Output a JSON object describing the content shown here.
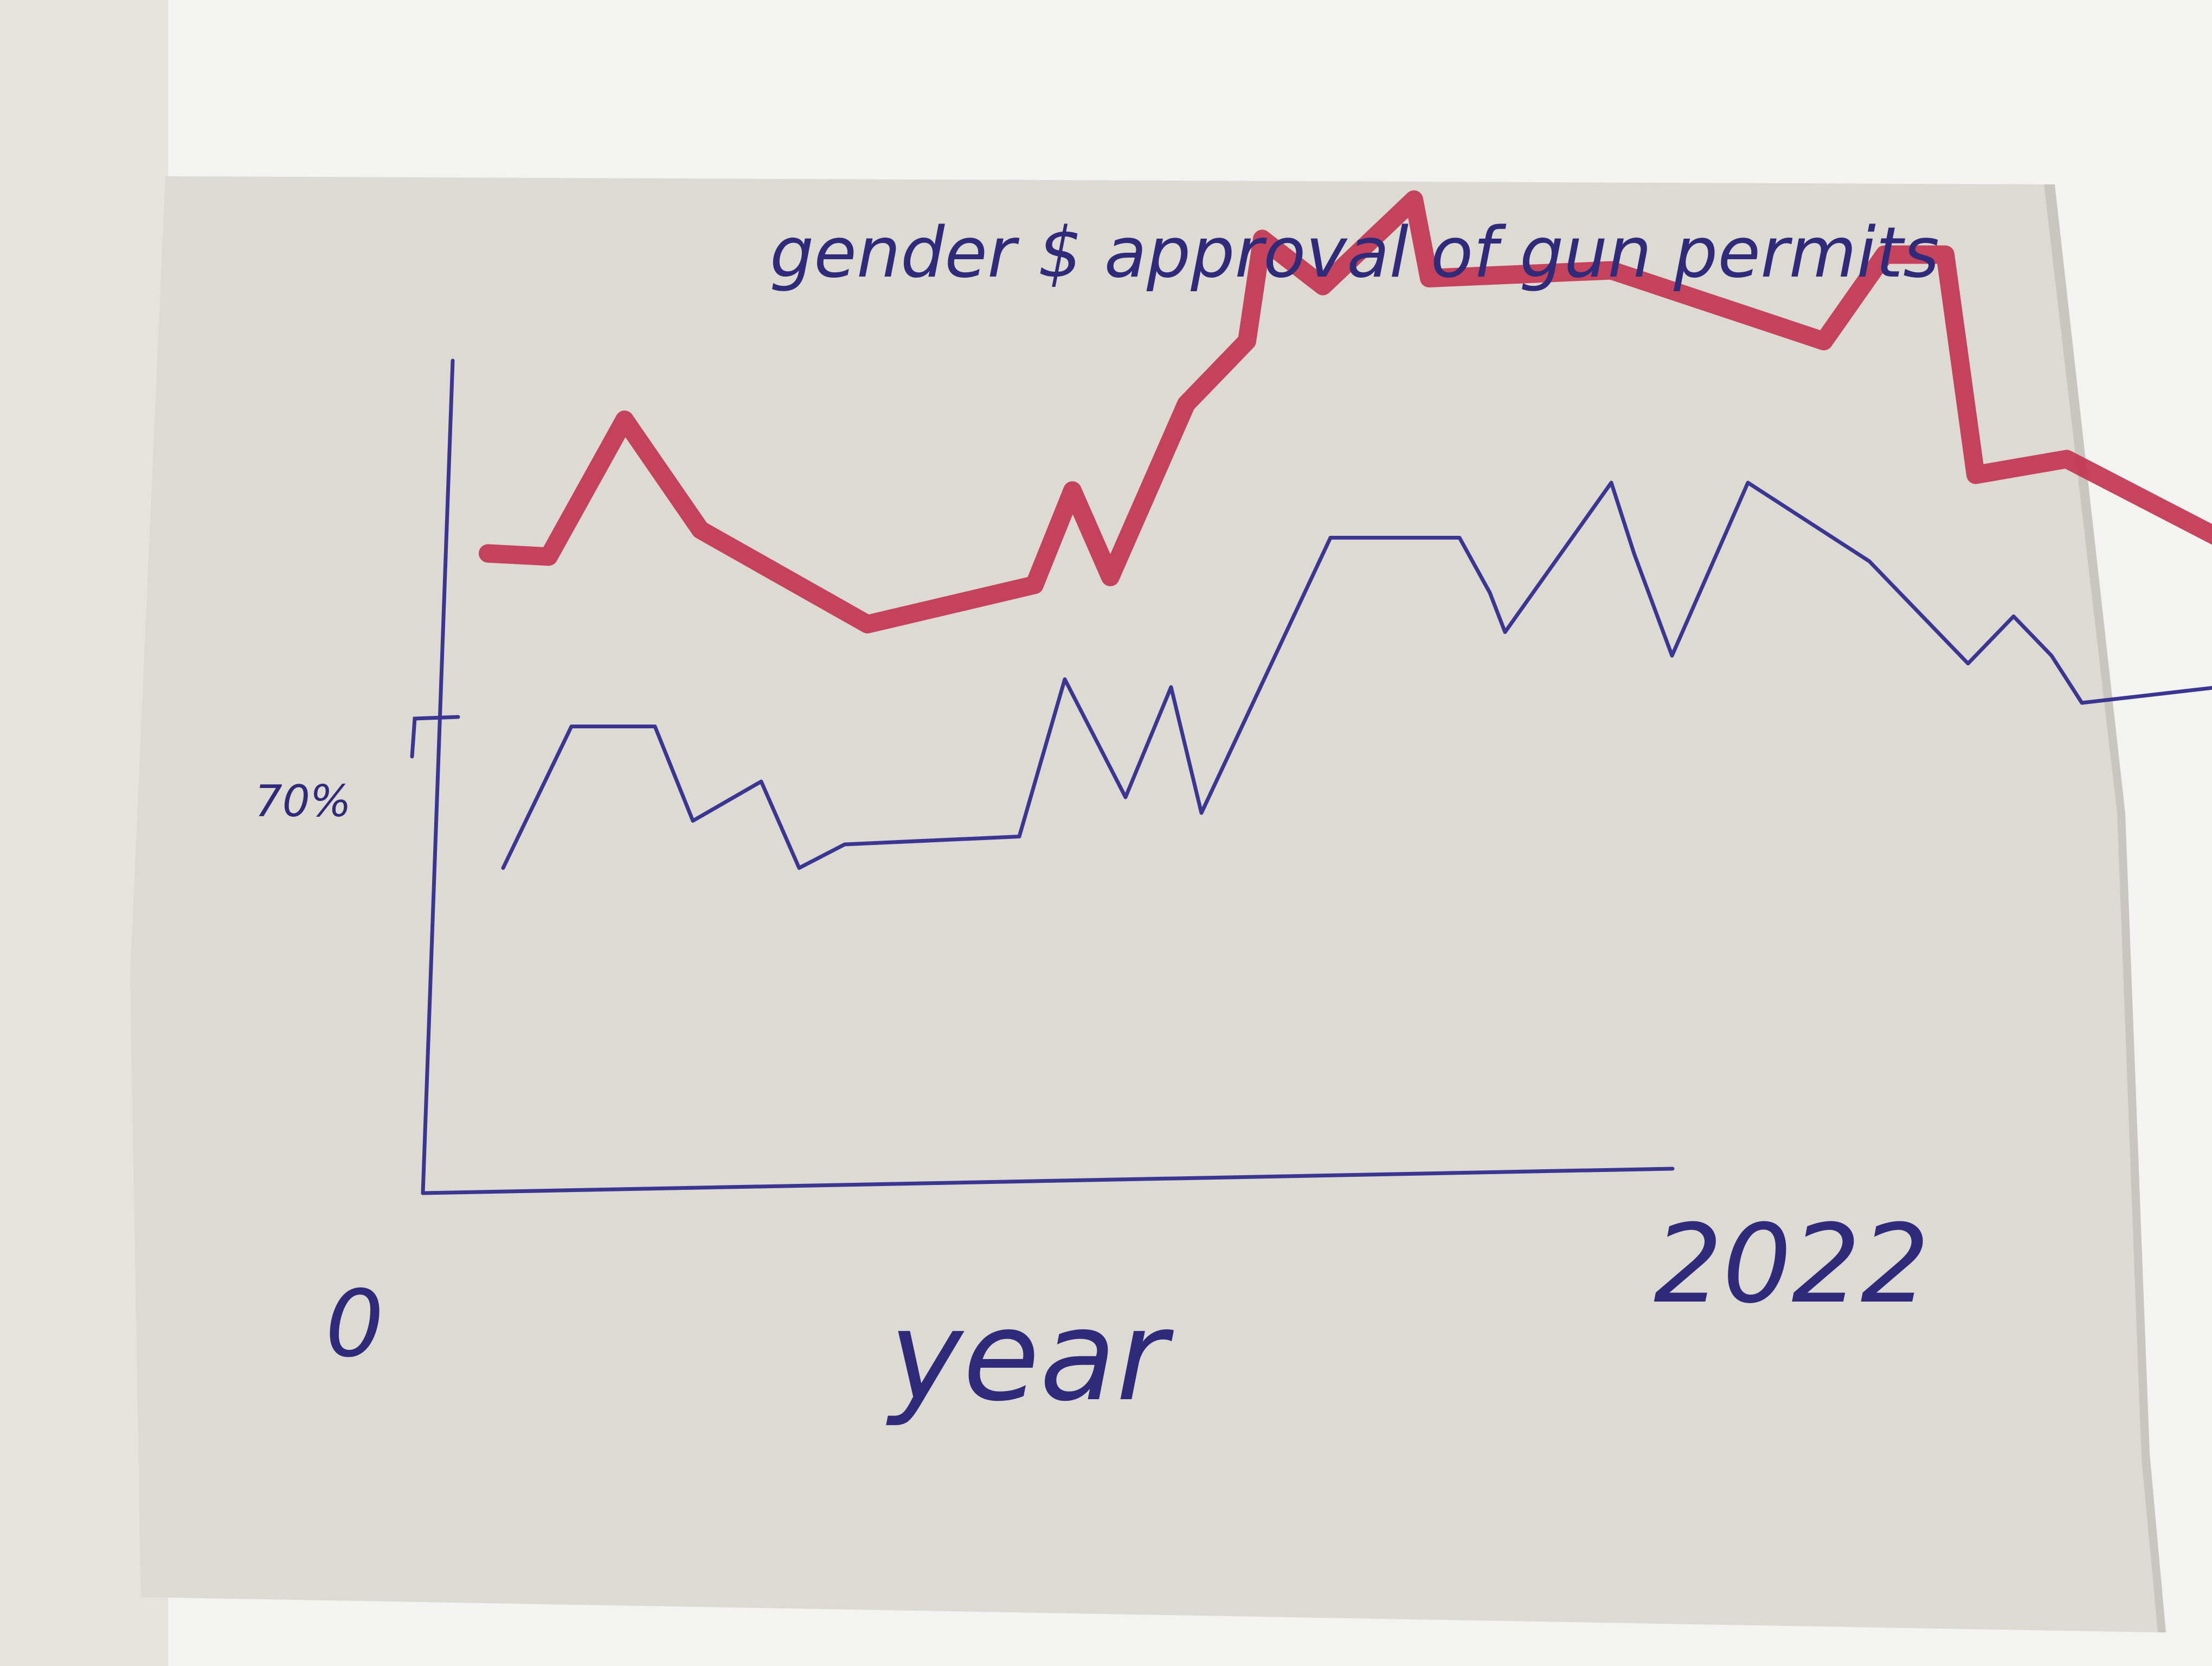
{
  "chart_data": {
    "type": "line",
    "title": "gender $ approval of gun permits",
    "xlabel": "year",
    "ylabel": "",
    "x_tick_labels": [
      "0",
      "2022"
    ],
    "x_range": [
      "0",
      "2022"
    ],
    "y_tick_labels": [
      "70%"
    ],
    "y_marked_value": 70,
    "grid": false,
    "legend": "none",
    "series": [
      {
        "color": "#c2314f",
        "stroke": "thick marker",
        "points": [
          [
            0.0,
            80.5
          ],
          [
            0.04,
            80.3
          ],
          [
            0.09,
            89.0
          ],
          [
            0.14,
            82.0
          ],
          [
            0.25,
            76.0
          ],
          [
            0.36,
            78.5
          ],
          [
            0.385,
            84.5
          ],
          [
            0.41,
            79.0
          ],
          [
            0.46,
            90.0
          ],
          [
            0.5,
            94.0
          ],
          [
            0.51,
            100.5
          ],
          [
            0.55,
            97.5
          ],
          [
            0.61,
            103.0
          ],
          [
            0.62,
            98.0
          ],
          [
            0.74,
            98.5
          ],
          [
            0.88,
            94.0
          ],
          [
            0.92,
            99.5
          ],
          [
            0.96,
            99.5
          ],
          [
            0.98,
            85.5
          ],
          [
            1.04,
            86.5
          ],
          [
            1.18,
            79.5
          ],
          [
            1.21,
            84.5
          ],
          [
            1.23,
            77.5
          ],
          [
            1.27,
            92.0
          ],
          [
            1.32,
            100.5
          ]
        ]
      },
      {
        "color": "#3a3692",
        "stroke": "thin pen",
        "points": [
          [
            0.01,
            60.5
          ],
          [
            0.055,
            69.5
          ],
          [
            0.11,
            69.5
          ],
          [
            0.135,
            63.5
          ],
          [
            0.18,
            66.0
          ],
          [
            0.205,
            60.5
          ],
          [
            0.235,
            62.0
          ],
          [
            0.35,
            62.5
          ],
          [
            0.38,
            72.5
          ],
          [
            0.42,
            65.0
          ],
          [
            0.45,
            72.0
          ],
          [
            0.47,
            64.0
          ],
          [
            0.555,
            81.5
          ],
          [
            0.64,
            81.5
          ],
          [
            0.66,
            78.0
          ],
          [
            0.67,
            75.5
          ],
          [
            0.74,
            85.0
          ],
          [
            0.755,
            80.5
          ],
          [
            0.78,
            74.0
          ],
          [
            0.83,
            85.0
          ],
          [
            0.91,
            80.0
          ],
          [
            0.975,
            73.5
          ],
          [
            1.005,
            76.5
          ],
          [
            1.03,
            74.0
          ],
          [
            1.05,
            71.0
          ],
          [
            1.14,
            72.0
          ],
          [
            1.25,
            63.0
          ],
          [
            1.3,
            60.5
          ]
        ]
      }
    ]
  }
}
